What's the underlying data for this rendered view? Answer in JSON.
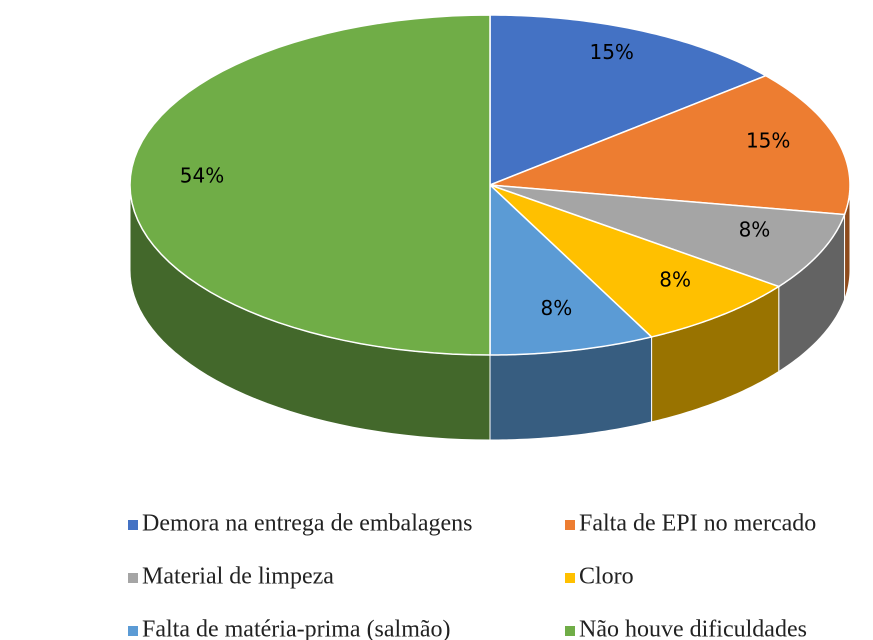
{
  "chart_data": {
    "type": "pie",
    "categories": [
      "Demora na entrega de embalagens",
      "Falta de EPI no mercado",
      "Material de limpeza",
      "Cloro",
      "Falta de matéria-prima (salmão)",
      "Não houve dificuldades"
    ],
    "values": [
      15,
      15,
      8,
      8,
      8,
      54
    ],
    "value_labels": [
      "15%",
      "15%",
      "8%",
      "8%",
      "8%",
      "54%"
    ],
    "colors": [
      "#4472c4",
      "#ed7d31",
      "#a5a5a5",
      "#ffc000",
      "#5b9bd5",
      "#70ad47"
    ],
    "legend": "bottom"
  }
}
